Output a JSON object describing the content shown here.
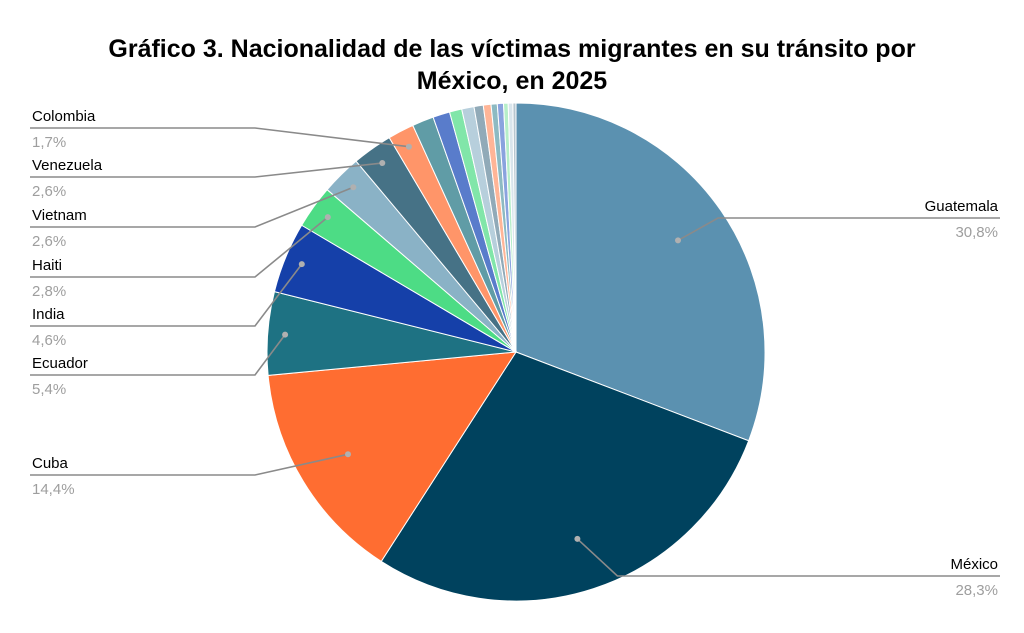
{
  "chart_data": {
    "type": "pie",
    "title_lines": [
      "Gráfico 3. Nacionalidad de las víctimas migrantes en su tránsito por",
      "México, en 2025"
    ],
    "slices": [
      {
        "label": "Guatemala",
        "value": 30.8,
        "value_label": "30,8%",
        "color": "#5b91b0",
        "labeled": true
      },
      {
        "label": "México",
        "value": 28.3,
        "value_label": "28,3%",
        "color": "#00425e",
        "labeled": true
      },
      {
        "label": "Cuba",
        "value": 14.4,
        "value_label": "14,4%",
        "color": "#ff6d31",
        "labeled": true
      },
      {
        "label": "Ecuador",
        "value": 5.4,
        "value_label": "5,4%",
        "color": "#1e7283",
        "labeled": true
      },
      {
        "label": "India",
        "value": 4.6,
        "value_label": "4,6%",
        "color": "#1540a9",
        "labeled": true
      },
      {
        "label": "Haiti",
        "value": 2.8,
        "value_label": "2,8%",
        "color": "#4ddc85",
        "labeled": true
      },
      {
        "label": "Vietnam",
        "value": 2.6,
        "value_label": "2,6%",
        "color": "#8ab2c6",
        "labeled": true
      },
      {
        "label": "Venezuela",
        "value": 2.6,
        "value_label": "2,6%",
        "color": "#467286",
        "labeled": true
      },
      {
        "label": "Colombia",
        "value": 1.7,
        "value_label": "1,7%",
        "color": "#ff9569",
        "labeled": true
      },
      {
        "value": 1.4,
        "color": "#609ca6",
        "labeled": false
      },
      {
        "value": 1.1,
        "color": "#597ccb",
        "labeled": false
      },
      {
        "value": 0.8,
        "color": "#81e6a9",
        "labeled": false
      },
      {
        "value": 0.8,
        "color": "#b7cfdc",
        "labeled": false
      },
      {
        "value": 0.6,
        "color": "#91aab8",
        "labeled": false
      },
      {
        "value": 0.5,
        "color": "#ffb597",
        "labeled": false
      },
      {
        "value": 0.4,
        "color": "#8dbac2",
        "labeled": false
      },
      {
        "value": 0.4,
        "color": "#8aa3de",
        "labeled": false
      },
      {
        "value": 0.3,
        "color": "#b6eec9",
        "labeled": false
      },
      {
        "value": 0.3,
        "color": "#d9e5ec",
        "labeled": false
      },
      {
        "value": 0.2,
        "color": "#b7c6cf",
        "labeled": false
      }
    ]
  }
}
